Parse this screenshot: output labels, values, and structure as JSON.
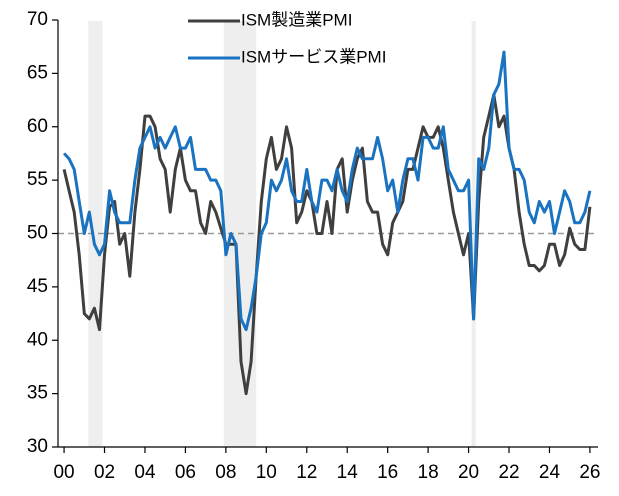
{
  "chart_data": {
    "type": "line",
    "x": [
      2000,
      2000.25,
      2000.5,
      2000.75,
      2001,
      2001.25,
      2001.5,
      2001.75,
      2002,
      2002.25,
      2002.5,
      2002.75,
      2003,
      2003.25,
      2003.5,
      2003.75,
      2004,
      2004.25,
      2004.5,
      2004.75,
      2005,
      2005.25,
      2005.5,
      2005.75,
      2006,
      2006.25,
      2006.5,
      2006.75,
      2007,
      2007.25,
      2007.5,
      2007.75,
      2008,
      2008.25,
      2008.5,
      2008.75,
      2009,
      2009.25,
      2009.5,
      2009.75,
      2010,
      2010.25,
      2010.5,
      2010.75,
      2011,
      2011.25,
      2011.5,
      2011.75,
      2012,
      2012.25,
      2012.5,
      2012.75,
      2013,
      2013.25,
      2013.5,
      2013.75,
      2014,
      2014.25,
      2014.5,
      2014.75,
      2015,
      2015.25,
      2015.5,
      2015.75,
      2016,
      2016.25,
      2016.5,
      2016.75,
      2017,
      2017.25,
      2017.5,
      2017.75,
      2018,
      2018.25,
      2018.5,
      2018.75,
      2019,
      2019.25,
      2019.5,
      2019.75,
      2020,
      2020.25,
      2020.5,
      2020.75,
      2021,
      2021.25,
      2021.5,
      2021.75,
      2022,
      2022.25,
      2022.5,
      2022.75,
      2023,
      2023.25,
      2023.5,
      2023.75,
      2024,
      2024.25,
      2024.5,
      2024.75,
      2025,
      2025.25,
      2025.5,
      2025.75,
      2026
    ],
    "series": [
      {
        "name": "ISM製造業PMI",
        "color": "#3f3f3f",
        "values": [
          56,
          54,
          52,
          48,
          42.5,
          42,
          43,
          41,
          48,
          52.5,
          53,
          49,
          50,
          46,
          52,
          56,
          61,
          61,
          60,
          57,
          56,
          52,
          56,
          58,
          55,
          54,
          54,
          51,
          50,
          53,
          52,
          50.5,
          49,
          49,
          49,
          38,
          35,
          38,
          46,
          53,
          57,
          59,
          56,
          57,
          60,
          58,
          51,
          52,
          54,
          53,
          50,
          50,
          53,
          50,
          56,
          57,
          52,
          55,
          57,
          58,
          53,
          52,
          52,
          49,
          48,
          51,
          52,
          53,
          56,
          56,
          58,
          60,
          59,
          59,
          60,
          58,
          55,
          52,
          50,
          48,
          50,
          42,
          53,
          59,
          61,
          63,
          60,
          61,
          58,
          56,
          52,
          49,
          47,
          47,
          46.5,
          47,
          49,
          49,
          47,
          48,
          50.5,
          49,
          48.5,
          48.5,
          52.5
        ]
      },
      {
        "name": "ISMサービス業PMI",
        "color": "#1a73c0",
        "values": [
          57.5,
          57,
          56,
          53,
          50,
          52,
          49,
          48,
          49,
          54,
          52,
          51,
          51,
          51,
          55,
          58,
          59,
          60,
          58,
          59,
          58,
          59,
          60,
          58,
          58,
          59,
          56,
          56,
          56,
          55,
          55,
          54,
          48,
          50,
          49,
          42,
          41,
          43,
          46,
          50,
          51,
          55,
          54,
          55,
          57,
          54,
          53,
          53,
          56,
          53,
          52,
          55,
          55,
          54,
          56,
          54,
          53,
          56,
          58,
          57,
          57,
          57,
          59,
          57,
          54,
          55,
          52,
          55,
          57,
          57,
          55,
          59,
          59,
          58,
          58,
          60,
          56,
          55,
          54,
          54,
          55,
          42,
          57,
          56,
          58,
          63,
          64,
          67,
          58,
          56,
          56,
          55,
          52,
          51,
          53,
          52,
          53,
          50,
          52,
          54,
          53,
          51,
          51,
          52,
          54
        ]
      }
    ],
    "recessions": [
      [
        2001.2,
        2001.9
      ],
      [
        2007.9,
        2009.5
      ],
      [
        2020.15,
        2020.35
      ]
    ],
    "reference_line": 50,
    "xlim": [
      1999.7,
      2026.4
    ],
    "xticks": [
      {
        "value": 2000,
        "label": "00"
      },
      {
        "value": 2002,
        "label": "02"
      },
      {
        "value": 2004,
        "label": "04"
      },
      {
        "value": 2006,
        "label": "06"
      },
      {
        "value": 2008,
        "label": "08"
      },
      {
        "value": 2010,
        "label": "10"
      },
      {
        "value": 2012,
        "label": "12"
      },
      {
        "value": 2014,
        "label": "14"
      },
      {
        "value": 2016,
        "label": "16"
      },
      {
        "value": 2018,
        "label": "18"
      },
      {
        "value": 2020,
        "label": "20"
      },
      {
        "value": 2022,
        "label": "22"
      },
      {
        "value": 2024,
        "label": "24"
      },
      {
        "value": 2026,
        "label": "26"
      }
    ],
    "ylim": [
      30,
      70
    ],
    "yticks": [
      30,
      35,
      40,
      45,
      50,
      55,
      60,
      65,
      70
    ]
  }
}
